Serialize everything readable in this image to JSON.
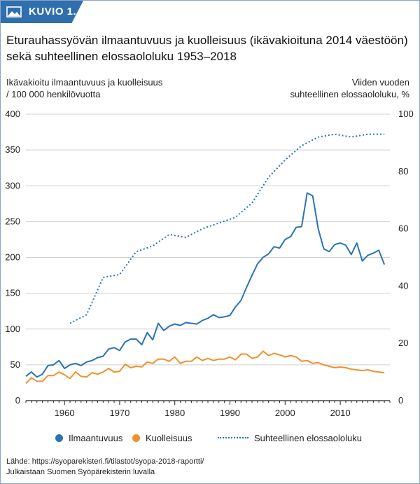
{
  "badge": {
    "label": "KUVIO 1.",
    "icon": "image-icon",
    "color": "#2f6fae"
  },
  "title": "Eturauhassyövän ilmaantuvuus ja kuolleisuus (ikävakioituna 2014 väestöön) sekä suhteellinen elossaololuku 1953–2018",
  "left_axis_title": [
    "Ikävakioitu ilmaantuvuus ja kuolleisuus",
    "/ 100 000 henkilövuotta"
  ],
  "right_axis_title": [
    "Viiden vuoden",
    "suhteellinen elossaololuku, %"
  ],
  "colors": {
    "incidence": "#2a73b5",
    "mortality": "#f0912c",
    "survival": "#2a73b5",
    "grid": "#cfcfcf"
  },
  "chart_data": {
    "type": "line",
    "title": "Eturauhassyövän ilmaantuvuus ja kuolleisuus (ikävakioituna 2014 väestöön) sekä suhteellinen elossaololuku 1953–2018",
    "xlim": [
      1953,
      2019
    ],
    "x_ticks": [
      1960,
      1970,
      1980,
      1990,
      2000,
      2010
    ],
    "ylim_left": [
      0,
      400
    ],
    "y_ticks_left": [
      0,
      50,
      100,
      150,
      200,
      250,
      300,
      350,
      400
    ],
    "ylim_right": [
      0,
      100
    ],
    "y_ticks_right": [
      0,
      20,
      40,
      60,
      80,
      100
    ],
    "series": [
      {
        "name": "Ilmaantuvuus",
        "axis": "left",
        "style": "solid",
        "x": [
          1953,
          1954,
          1955,
          1956,
          1957,
          1958,
          1959,
          1960,
          1961,
          1962,
          1963,
          1964,
          1965,
          1966,
          1967,
          1968,
          1969,
          1970,
          1971,
          1972,
          1973,
          1974,
          1975,
          1976,
          1977,
          1978,
          1979,
          1980,
          1981,
          1982,
          1983,
          1984,
          1985,
          1986,
          1987,
          1988,
          1989,
          1990,
          1991,
          1992,
          1993,
          1994,
          1995,
          1996,
          1997,
          1998,
          1999,
          2000,
          2001,
          2002,
          2003,
          2004,
          2005,
          2006,
          2007,
          2008,
          2009,
          2010,
          2011,
          2012,
          2013,
          2014,
          2015,
          2016,
          2017,
          2018
        ],
        "values": [
          34,
          40,
          33,
          37,
          49,
          50,
          56,
          45,
          50,
          52,
          49,
          54,
          56,
          60,
          62,
          72,
          74,
          70,
          82,
          86,
          86,
          78,
          95,
          85,
          108,
          98,
          104,
          107,
          105,
          109,
          108,
          107,
          112,
          115,
          120,
          116,
          117,
          119,
          131,
          140,
          158,
          175,
          191,
          200,
          205,
          215,
          213,
          225,
          229,
          242,
          243,
          290,
          286,
          240,
          212,
          208,
          218,
          220,
          217,
          204,
          220,
          195,
          203,
          206,
          210,
          190
        ]
      },
      {
        "name": "Kuolleisuus",
        "axis": "left",
        "style": "solid",
        "x": [
          1953,
          1954,
          1955,
          1956,
          1957,
          1958,
          1959,
          1960,
          1961,
          1962,
          1963,
          1964,
          1965,
          1966,
          1967,
          1968,
          1969,
          1970,
          1971,
          1972,
          1973,
          1974,
          1975,
          1976,
          1977,
          1978,
          1979,
          1980,
          1981,
          1982,
          1983,
          1984,
          1985,
          1986,
          1987,
          1988,
          1989,
          1990,
          1991,
          1992,
          1993,
          1994,
          1995,
          1996,
          1997,
          1998,
          1999,
          2000,
          2001,
          2002,
          2003,
          2004,
          2005,
          2006,
          2007,
          2008,
          2009,
          2010,
          2011,
          2012,
          2013,
          2014,
          2015,
          2016,
          2017,
          2018
        ],
        "values": [
          24,
          32,
          27,
          27,
          35,
          35,
          40,
          36,
          31,
          40,
          34,
          33,
          39,
          37,
          40,
          45,
          40,
          41,
          51,
          46,
          48,
          47,
          54,
          52,
          58,
          58,
          55,
          61,
          52,
          55,
          55,
          61,
          56,
          59,
          56,
          58,
          58,
          61,
          57,
          65,
          65,
          59,
          61,
          69,
          63,
          66,
          64,
          61,
          63,
          61,
          55,
          56,
          52,
          53,
          50,
          48,
          46,
          47,
          46,
          44,
          43,
          42,
          43,
          41,
          40,
          39
        ]
      },
      {
        "name": "Suhteellinen elossaololuku",
        "axis": "right",
        "style": "dotted",
        "x": [
          1961,
          1964,
          1967,
          1970,
          1973,
          1976,
          1979,
          1982,
          1985,
          1988,
          1991,
          1994,
          1997,
          2000,
          2003,
          2006,
          2009,
          2012,
          2015,
          2018
        ],
        "values": [
          27,
          30,
          43,
          44,
          52,
          54,
          58,
          57,
          60,
          62,
          64,
          69,
          78,
          84,
          89,
          92,
          93,
          92,
          93,
          93
        ]
      }
    ],
    "legend": {
      "position": "bottom",
      "entries": [
        "Ilmaantuvuus",
        "Kuolleisuus",
        "Suhteellinen elossaololuku"
      ]
    }
  },
  "source": [
    "Lähde: https://syoparekisteri.fi/tilastot/syopa-2018-raportti/",
    "Julkaistaan Suomen Syöpärekisterin luvalla"
  ]
}
